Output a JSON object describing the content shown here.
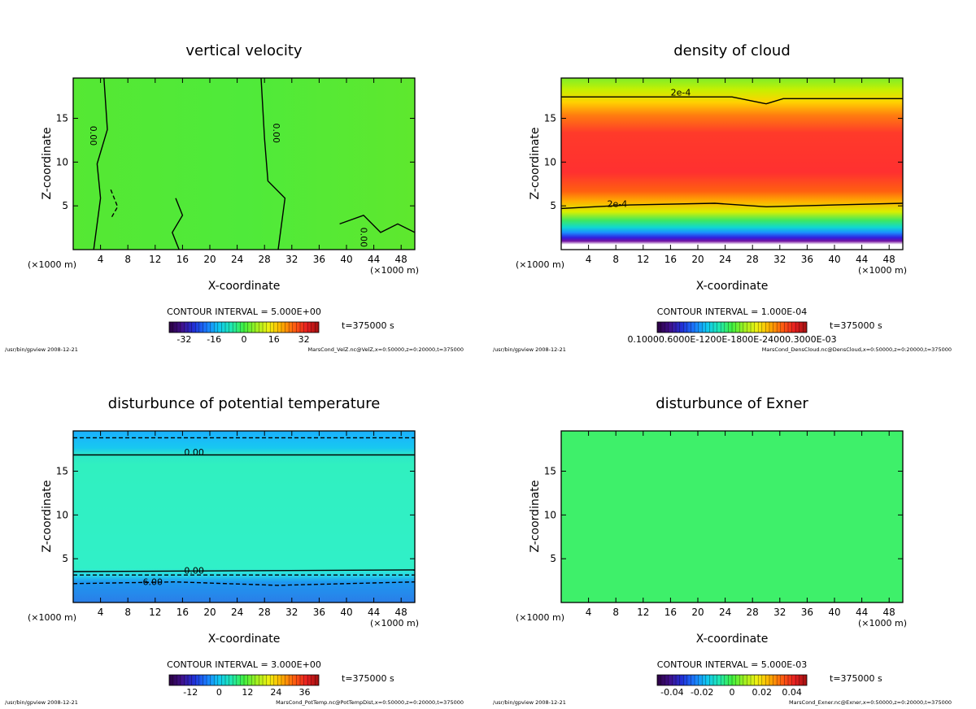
{
  "chart_data": [
    {
      "type": "heatmap",
      "title": "vertical velocity",
      "xlabel": "X-coordinate",
      "ylabel": "Z-coordinate",
      "x_unit_left": "(×1000 m)",
      "x_unit_right": "(×1000 m)",
      "x_ticks": [
        4,
        8,
        12,
        16,
        20,
        24,
        28,
        32,
        36,
        40,
        44,
        48
      ],
      "y_ticks": [
        5,
        10,
        15
      ],
      "xlim": [
        0,
        50
      ],
      "ylim": [
        0,
        19.6
      ],
      "contour_interval": "CONTOUR INTERVAL = 5.000E+00",
      "colorbar_ticks": [
        "-32",
        "-16",
        "0",
        "16",
        "32"
      ],
      "colorbar_values": [
        -32,
        -16,
        0,
        16,
        32
      ],
      "colorbar_range": [
        -40,
        40
      ],
      "time_label": "t=375000 s",
      "footer_left": "/usr/bin/gpview   2008-12-21",
      "footer_right": "MarsCond_VelZ.nc@VelZ,x=0:50000,z=0:20000,t=375000",
      "contour_labels": [
        {
          "text": "0.00",
          "x": 2.5,
          "y": 13.0,
          "rot": 90
        },
        {
          "text": "0.00",
          "x": 29.3,
          "y": 13.3,
          "rot": 90
        },
        {
          "text": "0.00",
          "x": 42.1,
          "y": 1.4,
          "rot": 90
        }
      ]
    },
    {
      "type": "heatmap",
      "title": "density of cloud",
      "xlabel": "X-coordinate",
      "ylabel": "Z-coordinate",
      "x_unit_left": "(×1000 m)",
      "x_unit_right": "(×1000 m)",
      "x_ticks": [
        4,
        8,
        12,
        16,
        20,
        24,
        28,
        32,
        36,
        40,
        44,
        48
      ],
      "y_ticks": [
        5,
        10,
        15
      ],
      "xlim": [
        0,
        50
      ],
      "ylim": [
        0,
        19.6
      ],
      "contour_interval": "CONTOUR INTERVAL = 1.000E-04",
      "colorbar_ticks": [
        "0.10000.6000E-1200E-1800E-24000.3000E-03"
      ],
      "colorbar_values": [],
      "colorbar_range": [
        0,
        1
      ],
      "time_label": "t=375000 s",
      "footer_left": "/usr/bin/gpview   2008-12-21",
      "footer_right": "MarsCond_DensCloud.nc@DensCloud,x=0:50000,z=0:20000,t=375000",
      "contour_labels": [
        {
          "text": "2e-4",
          "x": 17.5,
          "y": 17.6,
          "rot": 0
        },
        {
          "text": "2e-4",
          "x": 8.2,
          "y": 4.9,
          "rot": 0
        }
      ]
    },
    {
      "type": "heatmap",
      "title": "disturbunce of potential temperature",
      "xlabel": "X-coordinate",
      "ylabel": "Z-coordinate",
      "x_unit_left": "(×1000 m)",
      "x_unit_right": "(×1000 m)",
      "x_ticks": [
        4,
        8,
        12,
        16,
        20,
        24,
        28,
        32,
        36,
        40,
        44,
        48
      ],
      "y_ticks": [
        5,
        10,
        15
      ],
      "xlim": [
        0,
        50
      ],
      "ylim": [
        0,
        19.6
      ],
      "contour_interval": "CONTOUR INTERVAL = 3.000E+00",
      "colorbar_ticks": [
        "-12",
        "0",
        "12",
        "24",
        "36"
      ],
      "colorbar_values": [
        -12,
        0,
        12,
        24,
        36
      ],
      "colorbar_range": [
        -21,
        42
      ],
      "time_label": "t=375000 s",
      "footer_left": "/usr/bin/gpview   2008-12-21",
      "footer_right": "MarsCond_PotTemp.nc@PotTempDist,x=0:50000,z=0:20000,t=375000",
      "contour_labels": [
        {
          "text": "0.00",
          "x": 17.7,
          "y": 16.8,
          "rot": 0
        },
        {
          "text": "0.00",
          "x": 17.7,
          "y": 3.3,
          "rot": 0
        },
        {
          "text": "-6.00",
          "x": 11.4,
          "y": 2.0,
          "rot": 0
        }
      ]
    },
    {
      "type": "heatmap",
      "title": "disturbunce of Exner",
      "xlabel": "X-coordinate",
      "ylabel": "Z-coordinate",
      "x_unit_left": "(×1000 m)",
      "x_unit_right": "(×1000 m)",
      "x_ticks": [
        4,
        8,
        12,
        16,
        20,
        24,
        28,
        32,
        36,
        40,
        44,
        48
      ],
      "y_ticks": [
        5,
        10,
        15
      ],
      "xlim": [
        0,
        50
      ],
      "ylim": [
        0,
        19.6
      ],
      "contour_interval": "CONTOUR INTERVAL = 5.000E-03",
      "colorbar_ticks": [
        "-0.04",
        "-0.02",
        "0",
        "0.02",
        "0.04"
      ],
      "colorbar_values": [
        -0.04,
        -0.02,
        0,
        0.02,
        0.04
      ],
      "colorbar_range": [
        -0.05,
        0.05
      ],
      "time_label": "t=375000 s",
      "footer_left": "/usr/bin/gpview   2008-12-21",
      "footer_right": "MarsCond_Exner.nc@Exner,x=0:50000,z=0:20000,t=375000",
      "contour_labels": []
    }
  ]
}
